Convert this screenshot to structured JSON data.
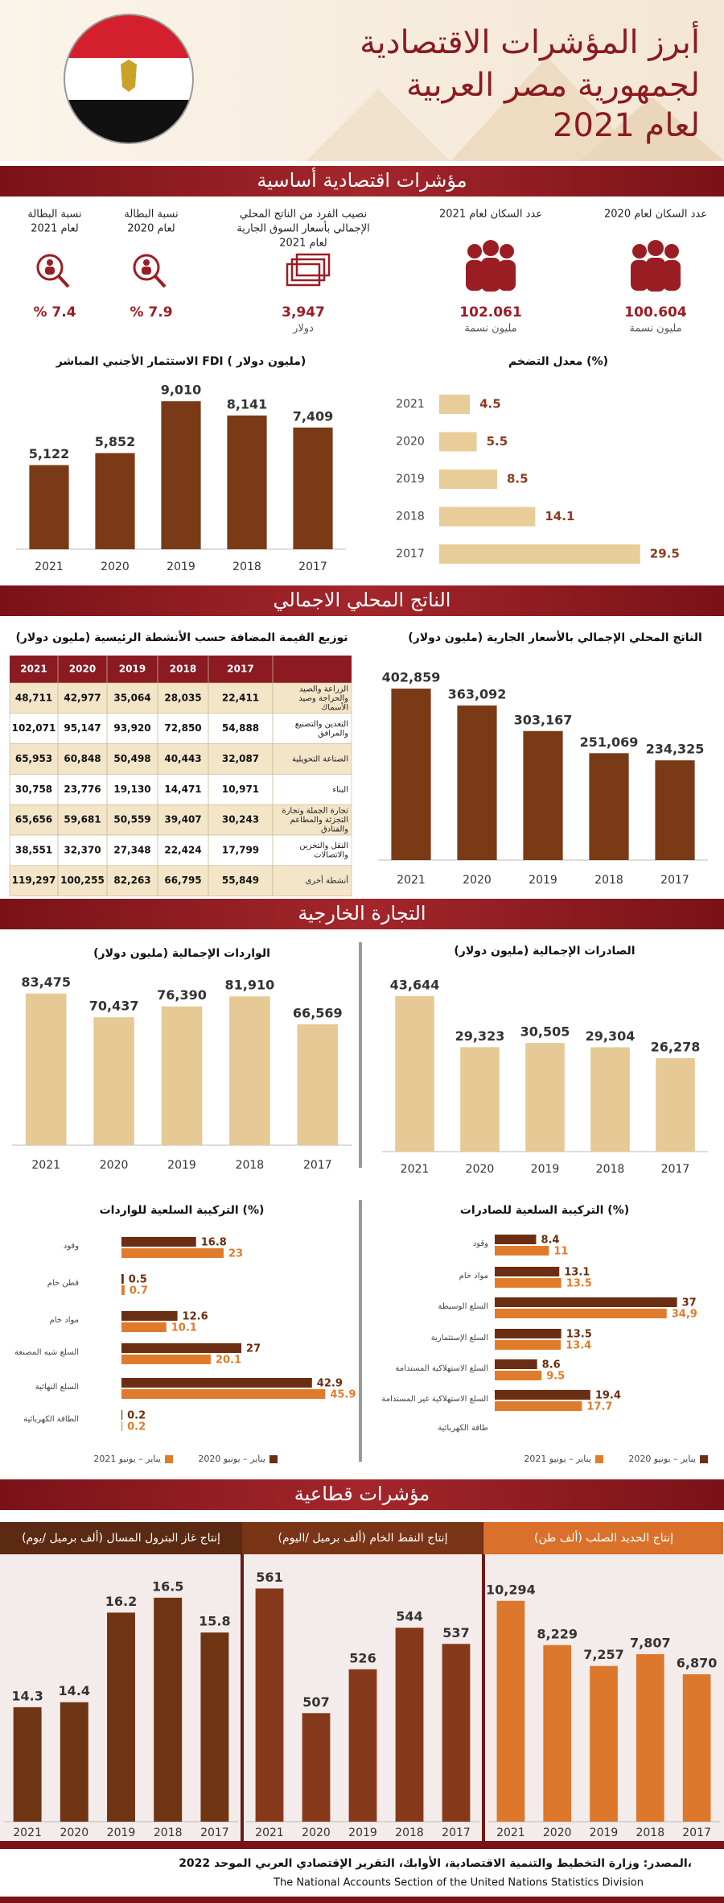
{
  "header": {
    "title_lines": [
      "أبرز المؤشرات الاقتصادية",
      "لجمهورية مصر العربية",
      "لعام 2021"
    ]
  },
  "sections": [
    "مؤشرات اقتصادية أساسية",
    "الناتج المحلي الاجمالي",
    "التجارة الخارجية",
    "مؤشرات قطاعية"
  ],
  "indicators": [
    {
      "label_lines": [
        "عدد السكان لعام 2020"
      ],
      "value": "100.604",
      "unit": "مليون نسمة"
    },
    {
      "label_lines": [
        "عدد السكان لعام 2021"
      ],
      "value": "102.061",
      "unit": "مليون نسمة"
    },
    {
      "label_lines": [
        "نصيب الفرد من الناتج المحلي",
        "الإجمالي بأسعار السوق الجارية",
        "لعام 2021"
      ],
      "value": "3,947",
      "unit": "دولار"
    },
    {
      "label_lines": [
        "نسبة البطالة",
        "لعام 2020"
      ],
      "value": "% 7.9"
    },
    {
      "label_lines": [
        "نسبة البطالة",
        "لعام 2021"
      ],
      "value": "% 7.4"
    }
  ],
  "table": {
    "title": "توزيع القيمة المضافة حسب الأنشطة الرئيسية (مليون دولار)",
    "columns": [
      "2021",
      "2020",
      "2019",
      "2018",
      "2017"
    ],
    "rows": [
      {
        "activity": [
          "الزراعة والصيد",
          "والحراجة وصيد",
          "الأسماك"
        ],
        "values": [
          "48,711",
          "42,977",
          "35,064",
          "28,035",
          "22,411"
        ]
      },
      {
        "activity": [
          "التعدين والتصنيع",
          "والمرافق"
        ],
        "values": [
          "102,071",
          "95,147",
          "93,920",
          "72,850",
          "54,888"
        ]
      },
      {
        "activity": [
          "الصناعة التحويلية"
        ],
        "values": [
          "65,953",
          "60,848",
          "50,498",
          "40,443",
          "32,087"
        ]
      },
      {
        "activity": [
          "البناء"
        ],
        "values": [
          "30,758",
          "23,776",
          "19,130",
          "14,471",
          "10,971"
        ]
      },
      {
        "activity": [
          "تجارة الجملة وتجارة",
          "التجزئة والمطاعم",
          "والفنادق"
        ],
        "values": [
          "65,656",
          "59,681",
          "50,559",
          "39,407",
          "30,243"
        ]
      },
      {
        "activity": [
          "النقل والتخزين",
          "والاتصالات"
        ],
        "values": [
          "38,551",
          "32,370",
          "27,348",
          "22,424",
          "17,799"
        ]
      },
      {
        "activity": [
          "أنشطة أخرى"
        ],
        "values": [
          "119,297",
          "100,255",
          "82,263",
          "66,795",
          "55,849"
        ]
      }
    ]
  },
  "chart_data": [
    {
      "type": "bar",
      "title": "الاستثمار الأجنبي المباشر FDI ( مليون دولار)",
      "categories": [
        "2021",
        "2020",
        "2019",
        "2018",
        "2017"
      ],
      "values": [
        5122,
        5852,
        9010,
        8141,
        7409
      ],
      "value_labels": [
        "5,122",
        "5,852",
        "9,010",
        "8,141",
        "7,409"
      ],
      "color": "#7b3a16",
      "ylim": [
        0,
        10000
      ]
    },
    {
      "type": "hbar",
      "title": "معدل التضخم (%)",
      "categories": [
        "2021",
        "2020",
        "2019",
        "2018",
        "2017"
      ],
      "values": [
        4.5,
        5.5,
        8.5,
        14.1,
        29.5
      ],
      "color": "#e8cd98",
      "xlim": [
        0,
        30
      ]
    },
    {
      "type": "bar",
      "title": "الناتج المحلي الإجمالي بالأسعار الجارية (مليون دولار)",
      "categories": [
        "2021",
        "2020",
        "2019",
        "2018",
        "2017"
      ],
      "values": [
        402859,
        363092,
        303167,
        251069,
        234325
      ],
      "value_labels": [
        "402,859",
        "363,092",
        "303,167",
        "251,069",
        "234,325"
      ],
      "color": "#7b3a16",
      "ylim": [
        0,
        420000
      ]
    },
    {
      "type": "bar",
      "title": "الواردات الإجمالية (مليون دولار)",
      "categories": [
        "2021",
        "2020",
        "2019",
        "2018",
        "2017"
      ],
      "values": [
        83475,
        70437,
        76390,
        81910,
        66569
      ],
      "value_labels": [
        "83,475",
        "70,437",
        "76,390",
        "81,910",
        "66,569"
      ],
      "color": "#e6c994",
      "ylim": [
        0,
        90000
      ]
    },
    {
      "type": "bar",
      "title": "الصادرات الإجمالية (مليون دولار)",
      "categories": [
        "2021",
        "2020",
        "2019",
        "2018",
        "2017"
      ],
      "values": [
        43644,
        29323,
        30505,
        29304,
        26278
      ],
      "value_labels": [
        "43,644",
        "29,323",
        "30,505",
        "29,304",
        "26,278"
      ],
      "color": "#e6c994",
      "ylim": [
        0,
        45000
      ]
    },
    {
      "type": "grouped_hbar",
      "title": "التركيبة السلعية للواردات (%)",
      "categories": [
        "وقود",
        "قطن خام",
        "مواد خام",
        "السلع شبه المصنعة",
        "السلع النهائية",
        "الطاقة الكهربائية"
      ],
      "series": [
        {
          "name": "يناير – يونيو 2020",
          "color": "#6b2e12",
          "values": [
            16.8,
            0.5,
            12.6,
            27,
            42.9,
            0.2
          ]
        },
        {
          "name": "يناير – يونيو 2021",
          "color": "#e07b2c",
          "values": [
            23,
            0.7,
            10.1,
            20.1,
            45.9,
            0.2
          ]
        }
      ],
      "xlim": [
        0,
        50
      ],
      "legend": "bottom"
    },
    {
      "type": "grouped_hbar",
      "title": "التركيبة السلعية للصادرات (%)",
      "categories": [
        "وقود",
        "مواد خام",
        "السلع الوسيطة",
        "السلع الإستثمارية",
        "السلع الاستهلاكية المستدامة",
        "السلع الاستهلاكية غير المستدامة",
        "طاقة الكهربائية"
      ],
      "series": [
        {
          "name": "يناير – يونيو 2020",
          "color": "#6b2e12",
          "values": [
            8.4,
            13.1,
            37,
            13.5,
            8.6,
            19.4,
            null
          ]
        },
        {
          "name": "يناير – يونيو 2021",
          "color": "#e07b2c",
          "values": [
            11,
            13.5,
            34.9,
            13.4,
            9.5,
            17.7,
            null
          ],
          "value_labels": [
            "11",
            "13.5",
            "34,9",
            "13.4",
            "9.5",
            "17.7",
            null
          ]
        }
      ],
      "xlim": [
        0,
        40
      ],
      "legend": "bottom"
    },
    {
      "type": "bar",
      "title": "إنتاج غاز البترول المسال (ألف برميل /يوم)",
      "categories": [
        "2021",
        "2020",
        "2019",
        "2018",
        "2017"
      ],
      "values": [
        14.3,
        14.4,
        16.2,
        16.5,
        15.8
      ],
      "color": "#6e3414",
      "ylim": [
        12,
        17
      ]
    },
    {
      "type": "bar",
      "title": "إنتاج النفط الخام (ألف برميل /اليوم)",
      "categories": [
        "2021",
        "2020",
        "2019",
        "2018",
        "2017"
      ],
      "values": [
        561,
        507,
        526,
        544,
        537
      ],
      "color": "#86391a",
      "ylim": [
        460,
        580
      ]
    },
    {
      "type": "bar",
      "title": "إنتاج الحديد الصلب (ألف طن)",
      "categories": [
        "2021",
        "2020",
        "2019",
        "2018",
        "2017"
      ],
      "values": [
        10294,
        8229,
        7257,
        7807,
        6870
      ],
      "value_labels": [
        "10,294",
        "8,229",
        "7,257",
        "7,807",
        "6,870"
      ],
      "color": "#dc772c",
      "ylim": [
        0,
        11000
      ]
    }
  ],
  "source": [
    "المصدر: وزارة التخطيط والتنمية الاقتصادية، الأوابك، التقرير الإقتصادي العربي الموحد 2022،",
    "The National Accounts Section of the United Nations Statistics Division"
  ]
}
